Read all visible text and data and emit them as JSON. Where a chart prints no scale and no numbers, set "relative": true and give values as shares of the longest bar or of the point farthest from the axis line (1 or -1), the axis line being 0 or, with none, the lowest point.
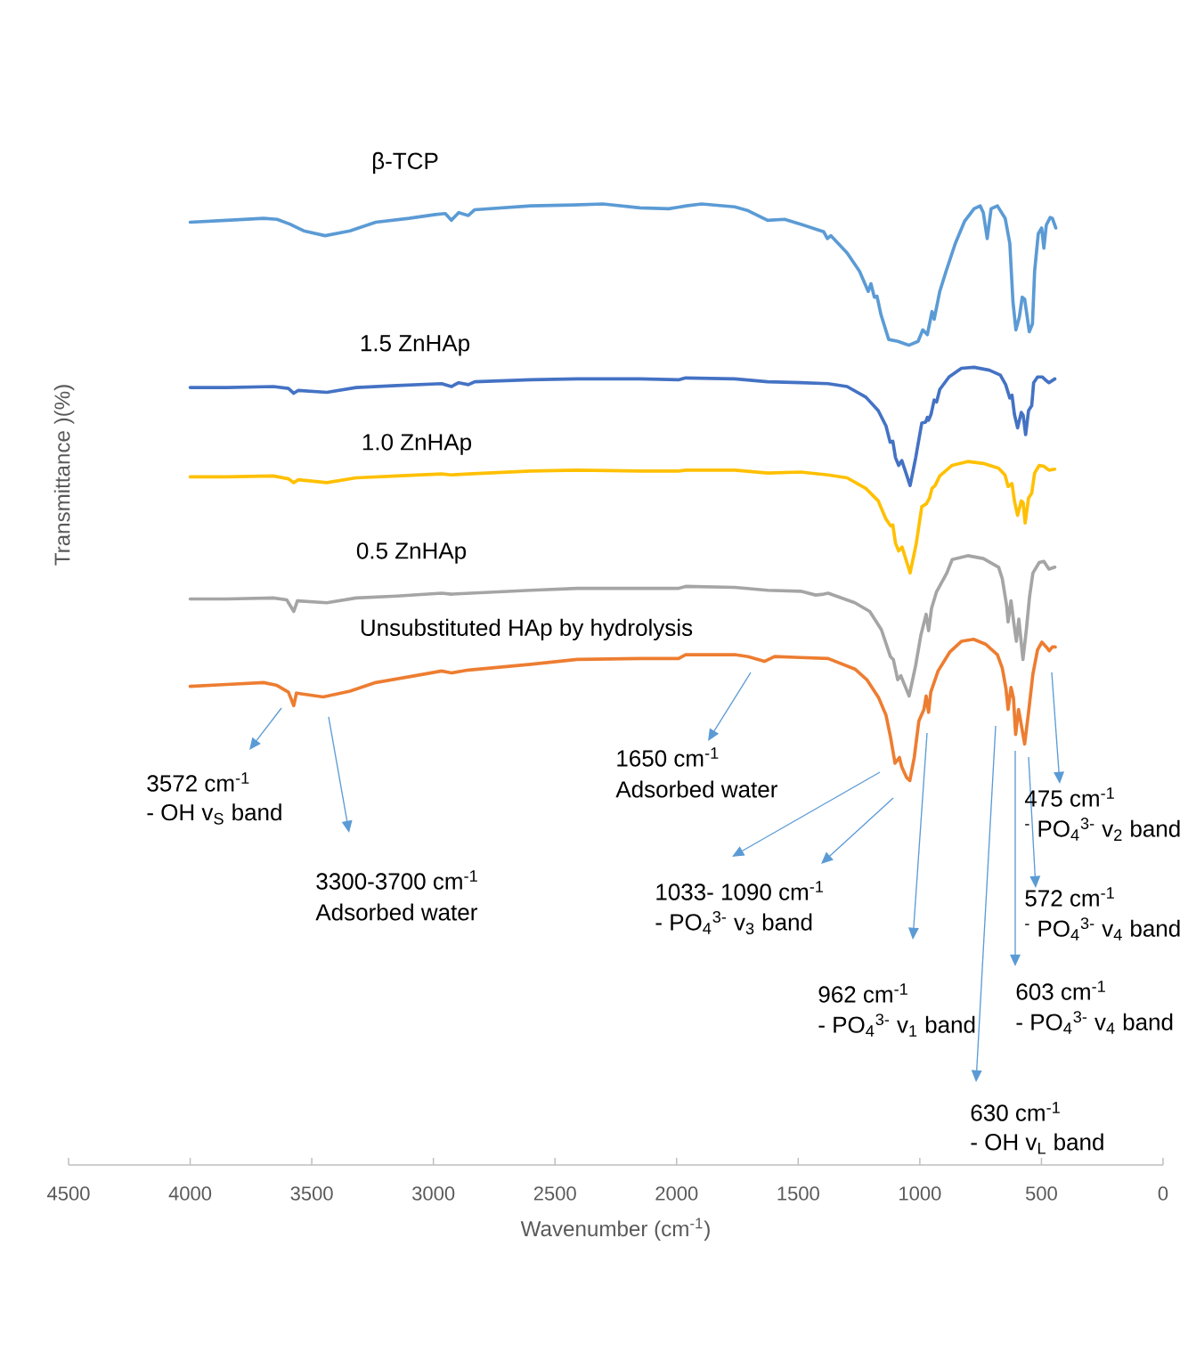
{
  "chart_data": {
    "type": "line",
    "relative": true,
    "xlabel": "Wavenumber (cm$^{-1}$)",
    "ylabel": "Transmittance )(%)",
    "xlim": [
      4500,
      0
    ],
    "xticks": [
      4500,
      4000,
      3500,
      3000,
      2500,
      2000,
      1500,
      1000,
      500,
      0
    ],
    "series": [
      {
        "name": "β-TCP",
        "color": "#5b9bd5",
        "x": [
          4000,
          3850,
          3698,
          3643,
          3590,
          3533,
          3445,
          3343,
          3237,
          3100,
          2992,
          2951,
          2926,
          2896,
          2856,
          2830,
          2600,
          2424,
          2303,
          2150,
          2032,
          1960,
          1897,
          1761,
          1706,
          1626,
          1556,
          1490,
          1395,
          1380,
          1366,
          1299,
          1248,
          1212,
          1201,
          1187,
          1176,
          1160,
          1128,
          1109,
          1090,
          1045,
          1007,
          988,
          969,
          950,
          941,
          918,
          892,
          854,
          816,
          777,
          752,
          739,
          723,
          707,
          681,
          649,
          630,
          617,
          605,
          591,
          579,
          569,
          560,
          550,
          537,
          528,
          513,
          499,
          490,
          480,
          464,
          455,
          441
        ],
        "values": [
          0.981,
          0.983,
          0.985,
          0.984,
          0.979,
          0.972,
          0.967,
          0.972,
          0.981,
          0.985,
          0.989,
          0.99,
          0.983,
          0.991,
          0.988,
          0.994,
          0.998,
          0.999,
          1.0,
          0.996,
          0.995,
          0.998,
          1.0,
          0.997,
          0.993,
          0.983,
          0.984,
          0.979,
          0.971,
          0.964,
          0.967,
          0.949,
          0.93,
          0.909,
          0.917,
          0.903,
          0.904,
          0.885,
          0.859,
          0.858,
          0.857,
          0.853,
          0.857,
          0.869,
          0.864,
          0.888,
          0.88,
          0.909,
          0.93,
          0.959,
          0.982,
          0.995,
          0.998,
          0.991,
          0.964,
          0.995,
          0.998,
          0.985,
          0.959,
          0.898,
          0.869,
          0.882,
          0.903,
          0.901,
          0.885,
          0.867,
          0.875,
          0.93,
          0.969,
          0.975,
          0.954,
          0.978,
          0.986,
          0.985,
          0.975
        ]
      },
      {
        "name": "1.5 ZnHAp",
        "color": "#4472c4",
        "x": [
          4000,
          3850,
          3658,
          3596,
          3574,
          3555,
          3438,
          3318,
          3150,
          2966,
          2926,
          2896,
          2856,
          2830,
          2600,
          2409,
          2150,
          1992,
          1963,
          1761,
          1626,
          1490,
          1377,
          1299,
          1222,
          1171,
          1139,
          1122,
          1111,
          1100,
          1087,
          1074,
          1040,
          1017,
          992,
          976,
          969,
          964,
          954,
          941,
          931,
          918,
          880,
          829,
          777,
          714,
          669,
          647,
          630,
          621,
          611,
          598,
          583,
          575,
          565,
          553,
          540,
          532,
          516,
          497,
          484,
          469,
          445
        ],
        "values": [
          0.809,
          0.809,
          0.81,
          0.808,
          0.803,
          0.806,
          0.804,
          0.809,
          0.811,
          0.813,
          0.81,
          0.814,
          0.812,
          0.815,
          0.817,
          0.818,
          0.818,
          0.817,
          0.819,
          0.818,
          0.815,
          0.814,
          0.813,
          0.81,
          0.799,
          0.785,
          0.769,
          0.752,
          0.753,
          0.736,
          0.728,
          0.733,
          0.707,
          0.736,
          0.772,
          0.773,
          0.778,
          0.775,
          0.781,
          0.796,
          0.794,
          0.807,
          0.82,
          0.829,
          0.83,
          0.827,
          0.822,
          0.812,
          0.798,
          0.801,
          0.781,
          0.767,
          0.783,
          0.78,
          0.76,
          0.785,
          0.79,
          0.814,
          0.82,
          0.82,
          0.817,
          0.814,
          0.818
        ]
      },
      {
        "name": "1.0 ZnHAp",
        "color": "#ffc000",
        "x": [
          4000,
          3850,
          3658,
          3596,
          3574,
          3555,
          3438,
          3318,
          3150,
          2966,
          2926,
          2856,
          2600,
          2409,
          2150,
          1992,
          1963,
          1761,
          1626,
          1490,
          1377,
          1299,
          1222,
          1171,
          1139,
          1120,
          1111,
          1100,
          1087,
          1073,
          1040,
          1015,
          992,
          973,
          960,
          950,
          937,
          918,
          867,
          803,
          739,
          676,
          650,
          637,
          621,
          611,
          598,
          583,
          575,
          567,
          553,
          540,
          528,
          509,
          490,
          469,
          445
        ],
        "values": [
          0.716,
          0.716,
          0.717,
          0.714,
          0.71,
          0.713,
          0.71,
          0.715,
          0.717,
          0.719,
          0.718,
          0.719,
          0.722,
          0.723,
          0.722,
          0.722,
          0.723,
          0.723,
          0.72,
          0.721,
          0.718,
          0.715,
          0.704,
          0.691,
          0.672,
          0.665,
          0.666,
          0.647,
          0.639,
          0.643,
          0.616,
          0.646,
          0.685,
          0.688,
          0.694,
          0.704,
          0.707,
          0.717,
          0.728,
          0.732,
          0.73,
          0.725,
          0.718,
          0.706,
          0.709,
          0.691,
          0.676,
          0.691,
          0.689,
          0.668,
          0.694,
          0.699,
          0.72,
          0.728,
          0.727,
          0.723,
          0.724
        ]
      },
      {
        "name": "0.5 ZnHAp",
        "color": "#a5a5a5",
        "x": [
          4000,
          3850,
          3658,
          3603,
          3574,
          3559,
          3438,
          3318,
          3150,
          2966,
          2926,
          2600,
          2409,
          2150,
          1992,
          1963,
          1761,
          1626,
          1490,
          1428,
          1395,
          1377,
          1267,
          1206,
          1158,
          1121,
          1109,
          1091,
          1078,
          1044,
          1017,
          996,
          974,
          964,
          952,
          932,
          889,
          867,
          803,
          739,
          676,
          661,
          643,
          637,
          625,
          613,
          603,
          593,
          576,
          562,
          549,
          535,
          509,
          490,
          469,
          445
        ],
        "values": [
          0.589,
          0.589,
          0.59,
          0.588,
          0.576,
          0.587,
          0.585,
          0.59,
          0.592,
          0.595,
          0.594,
          0.598,
          0.6,
          0.6,
          0.6,
          0.602,
          0.601,
          0.598,
          0.597,
          0.593,
          0.594,
          0.595,
          0.585,
          0.576,
          0.557,
          0.529,
          0.526,
          0.505,
          0.509,
          0.488,
          0.52,
          0.551,
          0.573,
          0.556,
          0.579,
          0.596,
          0.616,
          0.63,
          0.634,
          0.631,
          0.622,
          0.61,
          0.582,
          0.565,
          0.587,
          0.563,
          0.545,
          0.568,
          0.526,
          0.557,
          0.591,
          0.616,
          0.627,
          0.628,
          0.62,
          0.622
        ]
      },
      {
        "name": "Unsubstituted HAp by hydrolysis",
        "color": "#ed7d31",
        "x": [
          4000,
          3850,
          3698,
          3643,
          3596,
          3574,
          3563,
          3453,
          3343,
          3237,
          3100,
          2966,
          2926,
          2856,
          2600,
          2409,
          2150,
          1992,
          1963,
          1761,
          1706,
          1639,
          1597,
          1490,
          1377,
          1267,
          1218,
          1169,
          1139,
          1121,
          1102,
          1084,
          1074,
          1054,
          1041,
          1023,
          1004,
          983,
          974,
          964,
          955,
          925,
          876,
          828,
          779,
          730,
          681,
          661,
          646,
          637,
          625,
          615,
          606,
          594,
          569,
          553,
          535,
          516,
          498,
          480,
          468,
          455,
          443
        ],
        "values": [
          0.498,
          0.5,
          0.502,
          0.499,
          0.492,
          0.478,
          0.491,
          0.487,
          0.493,
          0.502,
          0.508,
          0.514,
          0.512,
          0.515,
          0.521,
          0.526,
          0.527,
          0.527,
          0.531,
          0.531,
          0.529,
          0.524,
          0.529,
          0.528,
          0.527,
          0.516,
          0.505,
          0.486,
          0.468,
          0.446,
          0.418,
          0.424,
          0.414,
          0.403,
          0.4,
          0.424,
          0.462,
          0.474,
          0.488,
          0.471,
          0.492,
          0.514,
          0.534,
          0.545,
          0.547,
          0.542,
          0.531,
          0.517,
          0.496,
          0.474,
          0.497,
          0.486,
          0.448,
          0.474,
          0.438,
          0.471,
          0.511,
          0.536,
          0.544,
          0.539,
          0.535,
          0.539,
          0.539
        ]
      }
    ],
    "annotations": [
      "3572 cm$^{-1}$",
      "- OH v$_{S}$ band",
      "3300-3700 cm$^{-1}$",
      "Adsorbed water",
      "1650 cm$^{-1}$",
      "Adsorbed water",
      "1033- 1090 cm$^{-1}$",
      "- PO$_{4}$$^{3-}$ v$_{3}$ band",
      "962 cm$^{-1}$",
      "- PO$_{4}$$^{3-}$ v$_{1}$ band",
      "630 cm$^{-1}$",
      "- OH v$_{L}$ band",
      "603 cm$^{-1}$",
      "- PO$_{4}$$^{3-}$ v$_{4}$ band",
      "572 cm$^{-1}$",
      "$^{-}$ PO$_{4}$$^{3-}$ v$_{4}$ band",
      "475 cm$^{-1}$",
      "$^{-}$ PO$_{4}$$^{3-}$ v$_{2}$ band"
    ]
  }
}
